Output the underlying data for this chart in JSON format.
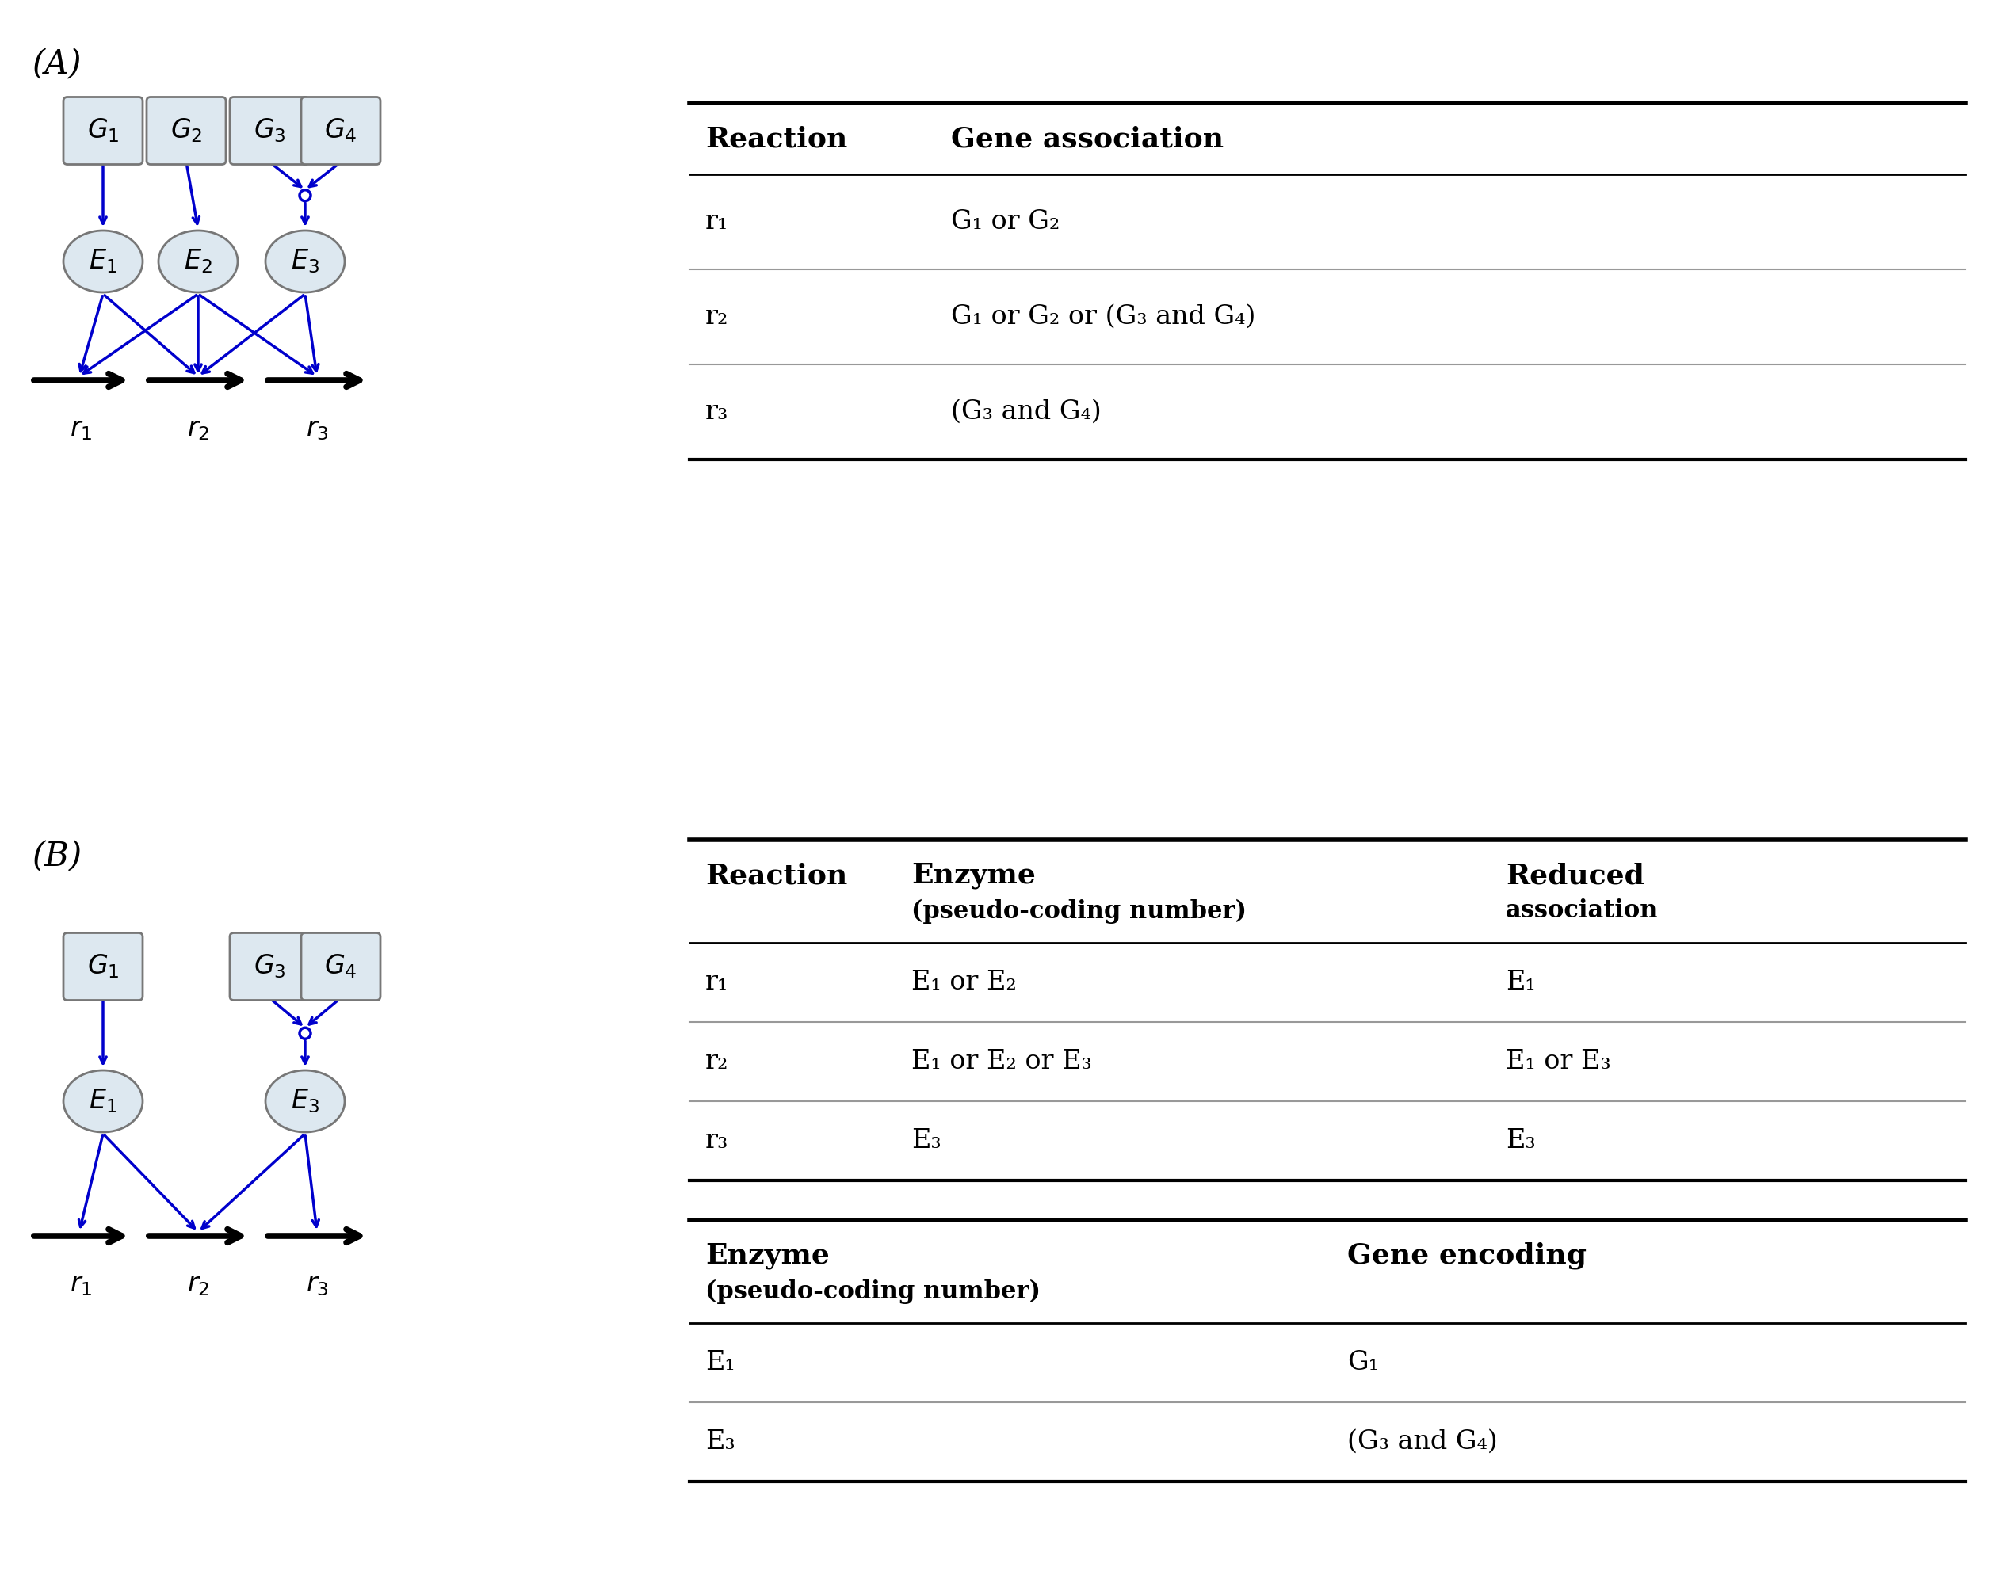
{
  "bg_color": "#ffffff",
  "blue": "#0000CC",
  "black": "#000000",
  "node_fill": "#dde8f0",
  "node_edge": "#666666",
  "panel_A_label": "(A)",
  "panel_B_label": "(B)",
  "tableA": {
    "title_col1": "Reaction",
    "title_col2": "Gene association",
    "rows": [
      [
        "r₁",
        "G₁ or G₂"
      ],
      [
        "r₂",
        "G₁ or G₂ or (G₃ and G₄)"
      ],
      [
        "r₃",
        "(G₃ and G₄)"
      ]
    ]
  },
  "tableB1": {
    "title_col1": "Reaction",
    "title_col2_line1": "Enzyme",
    "title_col2_line2": "(pseudo-coding number)",
    "title_col3_line1": "Reduced",
    "title_col3_line2": "association",
    "rows": [
      [
        "r₁",
        "E₁ or E₂",
        "E₁"
      ],
      [
        "r₂",
        "E₁ or E₂ or E₃",
        "E₁ or E₃"
      ],
      [
        "r₃",
        "E₃",
        "E₃"
      ]
    ]
  },
  "tableB2": {
    "title_col1_line1": "Enzyme",
    "title_col1_line2": "(pseudo-coding number)",
    "title_col2": "Gene encoding",
    "rows": [
      [
        "E₁",
        "G₁"
      ],
      [
        "E₃",
        "(G₃ and G₄)"
      ]
    ]
  }
}
